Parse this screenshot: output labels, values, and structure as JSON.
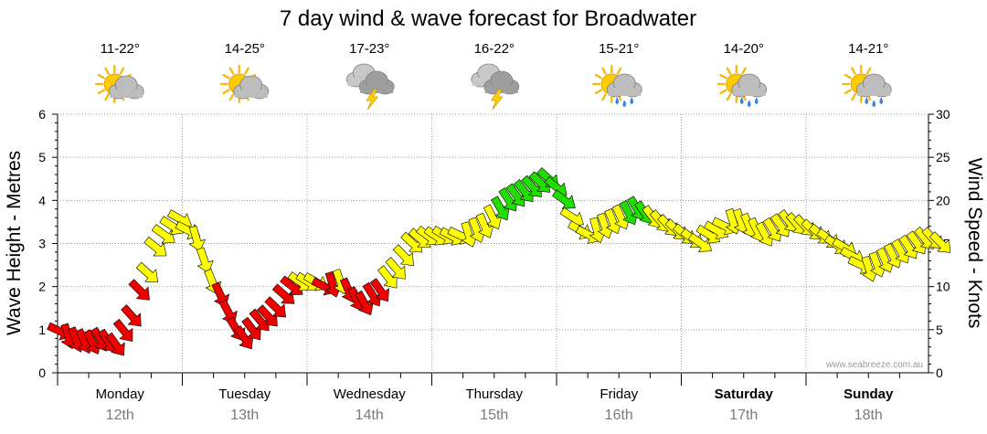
{
  "chart_data": {
    "type": "line",
    "title": "7 day wind & wave forecast for Broadwater",
    "ylabel_left": "Wave Height - Metres",
    "ylabel_right": "Wind Speed - Knots",
    "ylim_left": [
      0,
      6
    ],
    "ylim_right": [
      0,
      30
    ],
    "yticks_left": [
      "0",
      "1",
      "2",
      "3",
      "4",
      "5",
      "6"
    ],
    "yticks_right": [
      "0",
      "5",
      "10",
      "15",
      "20",
      "25",
      "30"
    ],
    "grid": true,
    "watermark": "www.seabreeze.com.au",
    "days": [
      {
        "day": "Monday",
        "date": "12th",
        "temp": "11-22°",
        "icon": "partly-cloudy-icon",
        "bold": false
      },
      {
        "day": "Tuesday",
        "date": "13th",
        "temp": "14-25°",
        "icon": "partly-cloudy-icon",
        "bold": false
      },
      {
        "day": "Wednesday",
        "date": "14th",
        "temp": "17-23°",
        "icon": "thunderstorm-icon",
        "bold": false
      },
      {
        "day": "Thursday",
        "date": "15th",
        "temp": "16-22°",
        "icon": "thunderstorm-icon",
        "bold": false
      },
      {
        "day": "Friday",
        "date": "16th",
        "temp": "15-21°",
        "icon": "showers-icon",
        "bold": false
      },
      {
        "day": "Saturday",
        "date": "17th",
        "temp": "14-20°",
        "icon": "showers-icon",
        "bold": true
      },
      {
        "day": "Sunday",
        "date": "18th",
        "temp": "14-21°",
        "icon": "showers-icon",
        "bold": true
      }
    ],
    "wind_colors": {
      "low": "#ee0000",
      "mid": "#ffff00",
      "high": "#22dd00"
    },
    "series": [
      {
        "values_knots": [
          4.8,
          4.2,
          3.8,
          3.6,
          3.5,
          3.8,
          3.6,
          3.2,
          4.8,
          6.5,
          9.5,
          11.5,
          14.5,
          16.0,
          17.0,
          17.8,
          16.5,
          15.5,
          13.0,
          10.5,
          9.0,
          7.0,
          5.0,
          4.0,
          5.0,
          6.0,
          6.5,
          7.5,
          9.0,
          10.0,
          10.5,
          10.5,
          10.5,
          10.0,
          10.2,
          10.5,
          9.5,
          8.5,
          8.0,
          9.0,
          9.5,
          11.0,
          12.0,
          13.5,
          15.0,
          15.5,
          15.8,
          15.8,
          15.9,
          15.8,
          15.9,
          16.0,
          16.5,
          17.0,
          18.0,
          19.0,
          20.0,
          20.5,
          21.0,
          21.5,
          22.0,
          22.5,
          21.5,
          20.0,
          18.0,
          16.5,
          16.0,
          16.5,
          17.0,
          17.5,
          18.0,
          18.5,
          19.0,
          18.5,
          18.0,
          17.5,
          17.0,
          16.5,
          16.0,
          15.5,
          15.0,
          16.0,
          16.5,
          17.0,
          17.5,
          17.5,
          17.0,
          16.5,
          16.0,
          16.5,
          17.0,
          17.5,
          17.2,
          17.0,
          16.5,
          16.0,
          15.5,
          14.8,
          14.5,
          13.5,
          12.5,
          12.0,
          12.5,
          13.0,
          13.5,
          14.0,
          14.5,
          15.0,
          15.5,
          15.5,
          15.0
        ]
      }
    ]
  }
}
